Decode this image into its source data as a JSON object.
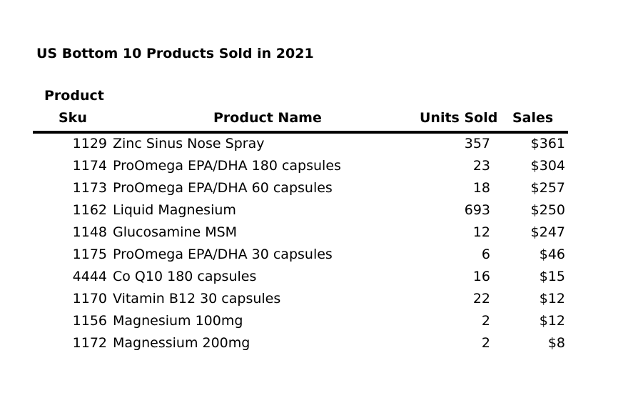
{
  "chart_data": {
    "type": "table",
    "title": "US Bottom 10 Products Sold in 2021",
    "columns": {
      "sku_line1": "Product",
      "sku_line2": "Sku",
      "name": "Product Name",
      "units": "Units Sold",
      "sales": "Sales"
    },
    "rows": [
      {
        "sku": "1129",
        "name": "Zinc Sinus Nose Spray",
        "units": "357",
        "sales": "$361"
      },
      {
        "sku": "1174",
        "name": "ProOmega EPA/DHA  180 capsules",
        "units": "23",
        "sales": "$304"
      },
      {
        "sku": "1173",
        "name": "ProOmega EPA/DHA 60 capsules",
        "units": "18",
        "sales": "$257"
      },
      {
        "sku": "1162",
        "name": "Liquid Magnesium",
        "units": "693",
        "sales": "$250"
      },
      {
        "sku": "1148",
        "name": "Glucosamine MSM",
        "units": "12",
        "sales": "$247"
      },
      {
        "sku": "1175",
        "name": "ProOmega EPA/DHA 30 capsules",
        "units": "6",
        "sales": "$46"
      },
      {
        "sku": "4444",
        "name": "Co Q10 180 capsules",
        "units": "16",
        "sales": "$15"
      },
      {
        "sku": "1170",
        "name": "Vitamin B12 30 capsules",
        "units": "22",
        "sales": "$12"
      },
      {
        "sku": "1156",
        "name": "Magnesium 100mg",
        "units": "2",
        "sales": "$12"
      },
      {
        "sku": "1172",
        "name": "Magnessium 200mg",
        "units": "2",
        "sales": "$8"
      }
    ]
  }
}
